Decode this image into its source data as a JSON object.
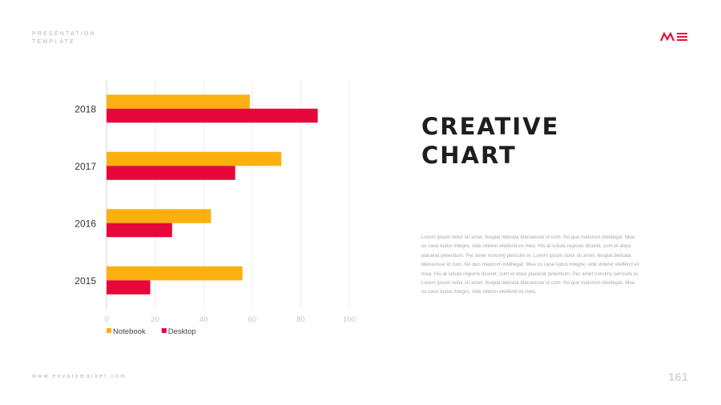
{
  "header": {
    "label_line1": "PRESENTATION",
    "label_line2": "TEMPLATE"
  },
  "logo": {
    "text": "ME",
    "color": "#e8103a"
  },
  "footer": {
    "url": "www.envatomarket.com",
    "page_number": "161"
  },
  "text_block": {
    "title": "CREATIVE\nCHART",
    "body": "Lorem ipsum dolor sit amet, feugiat delicata liberavisse id cum. No quo maiorum intellegat. Mea cu case ludus integre, vide viderer eleifend ex mea. His at soluta regione diceret, cum et atqui placerat petentium. Per amet nonumy periculis ei. Lorem ipsum dolor sit amet, feugiat delicata liberavisse id cum. No quo maiorum intellegat. Mea cu case ludus integre, vide viderer eleifend ex mea. His at soluta regione diceret, cum et atqui placerat petentium. Per amet nonumy periculis ei. Lorem ipsum dolor sit amet, feugiat delicata liberavisse id cum. No quo maiorum intellegat. Mea cu case ludus integre, vide viderer eleifend ex mea."
  },
  "chart_data": {
    "type": "bar",
    "orientation": "horizontal",
    "categories": [
      "2018",
      "2017",
      "2016",
      "2015"
    ],
    "series": [
      {
        "name": "Notebook",
        "color": "#fbb010",
        "values": [
          59,
          72,
          43,
          56
        ]
      },
      {
        "name": "Desktop",
        "color": "#e8073a",
        "values": [
          87,
          53,
          27,
          18
        ]
      }
    ],
    "xlim": [
      0,
      100
    ],
    "xticks": [
      "0",
      "20",
      "40",
      "60",
      "80",
      "100"
    ],
    "grid": true,
    "legend_position": "bottom-left"
  }
}
